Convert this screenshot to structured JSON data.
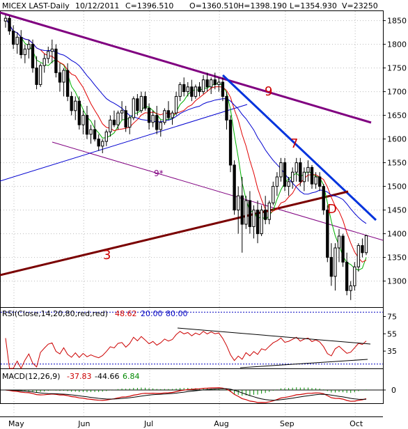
{
  "header": {
    "symbol": "MICEX LAST-Daily",
    "date": "10/12/2011",
    "close": "C=1396.510",
    "open": "O=1360.510",
    "high": "H=1398.190",
    "low": "L=1354.930",
    "volume": "V=23250"
  },
  "rsi_header": {
    "label": "RSI(Close,14,20,80,red,red)",
    "value": "48.62",
    "lower": "20.00",
    "upper": "80.00"
  },
  "macd_header": {
    "label": "MACD(12,26,9)",
    "macd": "-37.83",
    "signal": "-44.66",
    "hist": "6.84"
  },
  "colors": {
    "candle": "#000000",
    "ma_green": "#00b000",
    "ma_red": "#e00000",
    "ma_blue": "#0000d0",
    "purple": "#800080",
    "blue_trend": "#0033dd",
    "brown": "#7a0000",
    "label_red": "#e00000",
    "rsi_value": "#d00000",
    "rsi_bounds": "#0000c0",
    "macd_line": "#cc0000",
    "macd_hist": "#008800"
  },
  "chart_data": [
    {
      "type": "candlestick",
      "panel": "price",
      "ylim": [
        1245,
        1870
      ],
      "ytick_labels": [
        "1850",
        "1800",
        "1750",
        "1700",
        "1650",
        "1600",
        "1550",
        "1500",
        "1450",
        "1400",
        "1350",
        "1300"
      ],
      "x_labels": [
        "May",
        "Jun",
        "Jul",
        "Aug",
        "Sep",
        "Oct"
      ],
      "ohlc": [
        [
          1849,
          1862,
          1835,
          1855
        ],
        [
          1855,
          1860,
          1820,
          1828
        ],
        [
          1828,
          1840,
          1790,
          1800
        ],
        [
          1800,
          1825,
          1780,
          1815
        ],
        [
          1815,
          1830,
          1770,
          1778
        ],
        [
          1778,
          1800,
          1760,
          1790
        ],
        [
          1790,
          1810,
          1770,
          1800
        ],
        [
          1800,
          1810,
          1740,
          1750
        ],
        [
          1750,
          1775,
          1705,
          1715
        ],
        [
          1715,
          1760,
          1710,
          1755
        ],
        [
          1755,
          1780,
          1740,
          1770
        ],
        [
          1770,
          1795,
          1760,
          1785
        ],
        [
          1785,
          1810,
          1760,
          1790
        ],
        [
          1790,
          1800,
          1730,
          1740
        ],
        [
          1740,
          1760,
          1700,
          1720
        ],
        [
          1720,
          1750,
          1690,
          1745
        ],
        [
          1745,
          1760,
          1680,
          1690
        ],
        [
          1690,
          1700,
          1650,
          1660
        ],
        [
          1660,
          1690,
          1640,
          1680
        ],
        [
          1680,
          1690,
          1620,
          1630
        ],
        [
          1630,
          1660,
          1610,
          1650
        ],
        [
          1650,
          1670,
          1600,
          1610
        ],
        [
          1610,
          1630,
          1590,
          1620
        ],
        [
          1620,
          1640,
          1595,
          1600
        ],
        [
          1600,
          1610,
          1575,
          1585
        ],
        [
          1585,
          1600,
          1570,
          1595
        ],
        [
          1595,
          1620,
          1585,
          1615
        ],
        [
          1615,
          1650,
          1605,
          1640
        ],
        [
          1640,
          1660,
          1625,
          1630
        ],
        [
          1630,
          1660,
          1620,
          1655
        ],
        [
          1655,
          1680,
          1640,
          1660
        ],
        [
          1660,
          1670,
          1615,
          1625
        ],
        [
          1625,
          1650,
          1610,
          1645
        ],
        [
          1645,
          1690,
          1640,
          1685
        ],
        [
          1685,
          1695,
          1650,
          1660
        ],
        [
          1660,
          1700,
          1655,
          1690
        ],
        [
          1690,
          1700,
          1660,
          1665
        ],
        [
          1665,
          1675,
          1620,
          1635
        ],
        [
          1635,
          1660,
          1625,
          1650
        ],
        [
          1650,
          1670,
          1610,
          1620
        ],
        [
          1620,
          1640,
          1605,
          1635
        ],
        [
          1635,
          1665,
          1630,
          1660
        ],
        [
          1660,
          1680,
          1640,
          1645
        ],
        [
          1645,
          1660,
          1630,
          1655
        ],
        [
          1655,
          1700,
          1650,
          1690
        ],
        [
          1690,
          1720,
          1680,
          1715
        ],
        [
          1715,
          1730,
          1690,
          1700
        ],
        [
          1700,
          1720,
          1690,
          1710
        ],
        [
          1710,
          1725,
          1680,
          1690
        ],
        [
          1690,
          1715,
          1685,
          1710
        ],
        [
          1710,
          1720,
          1690,
          1700
        ],
        [
          1700,
          1735,
          1695,
          1725
        ],
        [
          1725,
          1740,
          1700,
          1710
        ],
        [
          1710,
          1730,
          1695,
          1725
        ],
        [
          1725,
          1740,
          1705,
          1715
        ],
        [
          1715,
          1730,
          1700,
          1720
        ],
        [
          1720,
          1730,
          1680,
          1690
        ],
        [
          1690,
          1700,
          1620,
          1640
        ],
        [
          1640,
          1650,
          1530,
          1545
        ],
        [
          1545,
          1555,
          1440,
          1450
        ],
        [
          1450,
          1500,
          1400,
          1480
        ],
        [
          1480,
          1520,
          1360,
          1420
        ],
        [
          1420,
          1480,
          1410,
          1470
        ],
        [
          1470,
          1490,
          1400,
          1415
        ],
        [
          1415,
          1460,
          1390,
          1450
        ],
        [
          1450,
          1470,
          1380,
          1400
        ],
        [
          1400,
          1460,
          1395,
          1450
        ],
        [
          1450,
          1480,
          1420,
          1430
        ],
        [
          1430,
          1470,
          1420,
          1465
        ],
        [
          1465,
          1510,
          1460,
          1500
        ],
        [
          1500,
          1530,
          1480,
          1520
        ],
        [
          1520,
          1560,
          1510,
          1550
        ],
        [
          1550,
          1560,
          1490,
          1500
        ],
        [
          1500,
          1520,
          1480,
          1510
        ],
        [
          1510,
          1540,
          1495,
          1530
        ],
        [
          1530,
          1560,
          1510,
          1550
        ],
        [
          1550,
          1560,
          1500,
          1510
        ],
        [
          1510,
          1540,
          1490,
          1530
        ],
        [
          1530,
          1555,
          1510,
          1540
        ],
        [
          1540,
          1545,
          1495,
          1505
        ],
        [
          1505,
          1530,
          1495,
          1520
        ],
        [
          1520,
          1530,
          1490,
          1500
        ],
        [
          1500,
          1505,
          1440,
          1450
        ],
        [
          1450,
          1460,
          1340,
          1350
        ],
        [
          1350,
          1380,
          1290,
          1310
        ],
        [
          1310,
          1380,
          1280,
          1370
        ],
        [
          1370,
          1410,
          1340,
          1395
        ],
        [
          1395,
          1400,
          1330,
          1340
        ],
        [
          1340,
          1360,
          1270,
          1280
        ],
        [
          1280,
          1300,
          1260,
          1290
        ],
        [
          1290,
          1340,
          1280,
          1330
        ],
        [
          1330,
          1380,
          1320,
          1375
        ],
        [
          1375,
          1390,
          1350,
          1360
        ],
        [
          1360,
          1398,
          1355,
          1396
        ]
      ]
    },
    {
      "type": "line",
      "panel": "rsi",
      "ylim": [
        15,
        85
      ],
      "ytick_labels": [
        "75",
        "55",
        "35"
      ],
      "levels": [
        20,
        80
      ]
    },
    {
      "type": "bar",
      "panel": "macd",
      "ytick_labels": [
        "0"
      ]
    }
  ],
  "annotations": {
    "nine_upper": "9",
    "nine_star": "9*",
    "seven": "7",
    "three": "3",
    "d": "D"
  }
}
